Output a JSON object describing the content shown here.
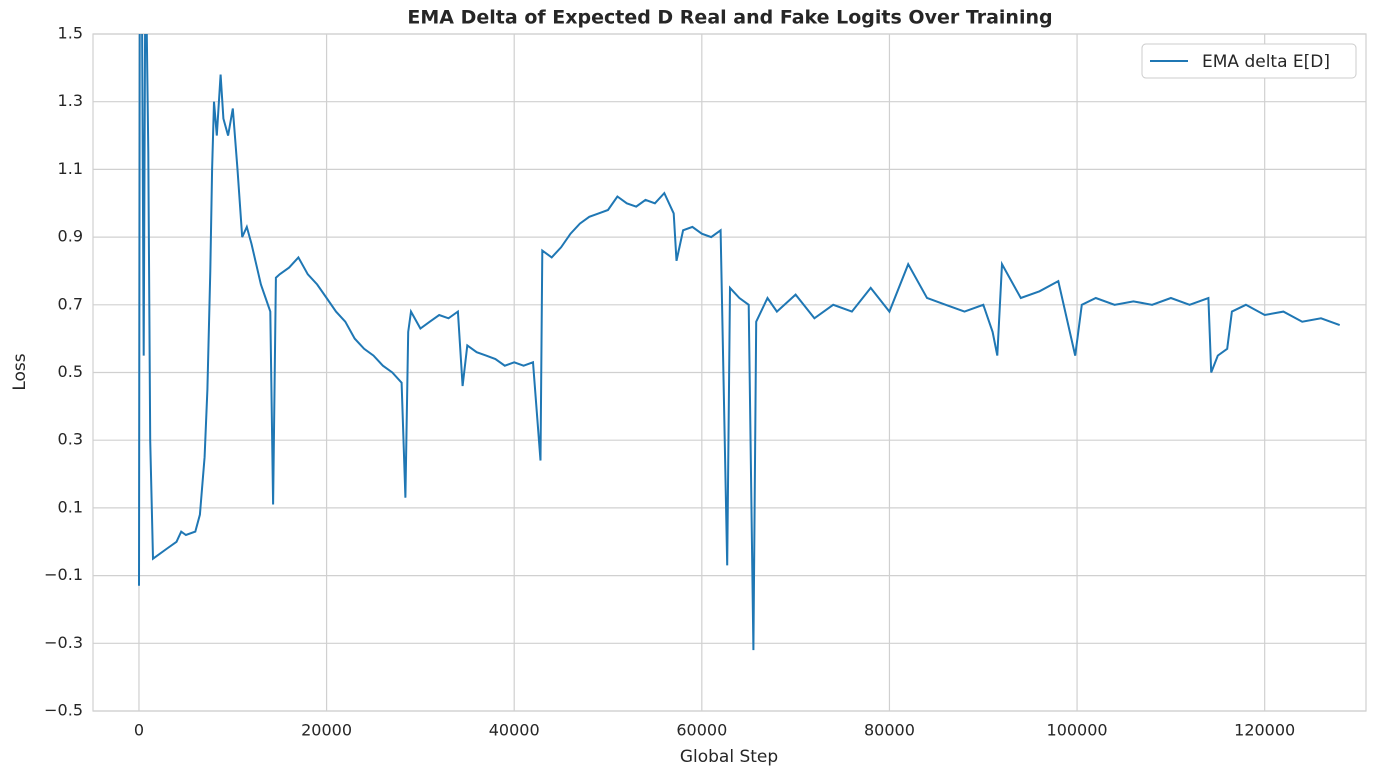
{
  "chart_data": {
    "type": "line",
    "title": "EMA Delta of Expected D Real and Fake Logits Over Training",
    "x_label": "Global Step",
    "y_label": "Loss",
    "x": [
      0,
      100,
      300,
      500,
      700,
      1000,
      1200,
      1500,
      2000,
      3000,
      4000,
      4500,
      5000,
      6000,
      6500,
      7000,
      7300,
      7600,
      7800,
      8000,
      8300,
      8700,
      9000,
      9500,
      10000,
      10500,
      11000,
      11500,
      12000,
      12500,
      13000,
      13500,
      14000,
      14300,
      14600,
      15000,
      16000,
      17000,
      18000,
      19000,
      20000,
      21000,
      22000,
      23000,
      24000,
      25000,
      26000,
      27000,
      28000,
      28400,
      28700,
      29000,
      30000,
      31000,
      32000,
      33000,
      34000,
      34500,
      35000,
      36000,
      37000,
      38000,
      39000,
      40000,
      41000,
      42000,
      42800,
      43000,
      44000,
      45000,
      46000,
      47000,
      48000,
      49000,
      50000,
      51000,
      52000,
      53000,
      54000,
      55000,
      56000,
      57000,
      57300,
      58000,
      59000,
      60000,
      61000,
      62000,
      62700,
      63000,
      64000,
      65000,
      65500,
      65800,
      67000,
      68000,
      70000,
      72000,
      74000,
      76000,
      78000,
      80000,
      82000,
      84000,
      86000,
      88000,
      90000,
      91000,
      91500,
      92000,
      94000,
      96000,
      98000,
      99800,
      100500,
      102000,
      104000,
      106000,
      108000,
      110000,
      112000,
      114000,
      114300,
      115000,
      116000,
      116500,
      118000,
      120000,
      122000,
      124000,
      126000,
      128000
    ],
    "series": [
      {
        "name": "EMA delta E[D]",
        "color": "#1f77b4",
        "values": [
          -0.13,
          1.9,
          1.7,
          0.55,
          1.8,
          1.15,
          0.3,
          -0.05,
          -0.04,
          -0.02,
          0.0,
          0.03,
          0.02,
          0.03,
          0.08,
          0.25,
          0.45,
          0.8,
          1.1,
          1.3,
          1.2,
          1.38,
          1.25,
          1.2,
          1.28,
          1.1,
          0.9,
          0.93,
          0.88,
          0.82,
          0.76,
          0.72,
          0.68,
          0.11,
          0.78,
          0.79,
          0.81,
          0.84,
          0.79,
          0.76,
          0.72,
          0.68,
          0.65,
          0.6,
          0.57,
          0.55,
          0.52,
          0.5,
          0.47,
          0.13,
          0.62,
          0.68,
          0.63,
          0.65,
          0.67,
          0.66,
          0.68,
          0.46,
          0.58,
          0.56,
          0.55,
          0.54,
          0.52,
          0.53,
          0.52,
          0.53,
          0.24,
          0.86,
          0.84,
          0.87,
          0.91,
          0.94,
          0.96,
          0.97,
          0.98,
          1.02,
          1.0,
          0.99,
          1.01,
          1.0,
          1.03,
          0.97,
          0.83,
          0.92,
          0.93,
          0.91,
          0.9,
          0.92,
          -0.07,
          0.75,
          0.72,
          0.7,
          -0.32,
          0.65,
          0.72,
          0.68,
          0.73,
          0.66,
          0.7,
          0.68,
          0.75,
          0.68,
          0.82,
          0.72,
          0.7,
          0.68,
          0.7,
          0.62,
          0.55,
          0.82,
          0.72,
          0.74,
          0.77,
          0.55,
          0.7,
          0.72,
          0.7,
          0.71,
          0.7,
          0.72,
          0.7,
          0.72,
          0.5,
          0.55,
          0.57,
          0.68,
          0.7,
          0.67,
          0.68,
          0.65,
          0.66,
          0.64
        ]
      }
    ],
    "xlim": [
      -4900,
      130800
    ],
    "ylim": [
      -0.5,
      1.5
    ],
    "xticks": [
      0,
      20000,
      40000,
      60000,
      80000,
      100000,
      120000
    ],
    "yticks": [
      {
        "value": -0.5,
        "label": "−0.5"
      },
      {
        "value": -0.3,
        "label": "−0.3"
      },
      {
        "value": -0.1,
        "label": "−0.1"
      },
      0.1,
      0.3,
      0.5,
      0.7,
      0.9,
      1.1,
      1.3,
      1.5
    ],
    "grid": true,
    "legend": "upper right"
  }
}
